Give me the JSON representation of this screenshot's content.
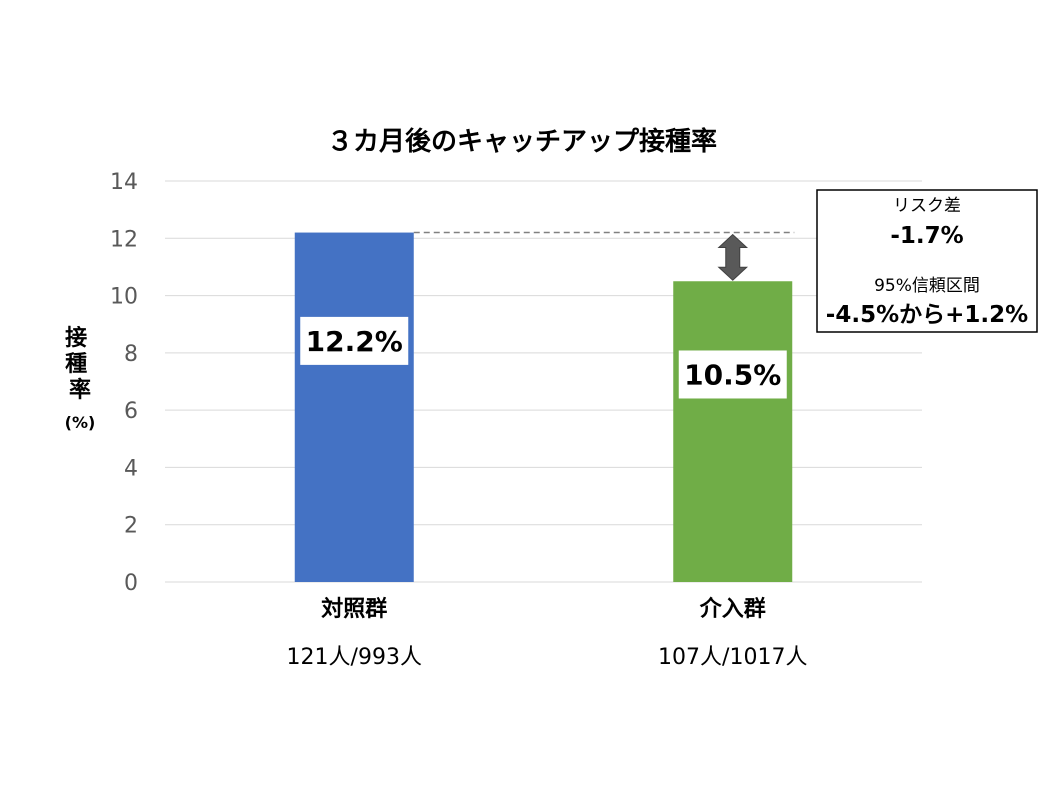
{
  "chart_data": {
    "type": "bar",
    "title": "３カ月後のキャッチアップ接種率",
    "ylabel": "接種率",
    "ylabel_unit": "(%)",
    "ylim": [
      0,
      14
    ],
    "yticks": [
      "0",
      "2",
      "4",
      "6",
      "8",
      "10",
      "12",
      "14"
    ],
    "ytick_values": [
      0,
      2,
      4,
      6,
      8,
      10,
      12,
      14
    ],
    "grid": true,
    "categories": [
      "対照群",
      "介入群"
    ],
    "counts": [
      "121人/993人",
      "107人/1017人"
    ],
    "values": [
      12.2,
      10.5
    ],
    "value_labels": [
      "12.2%",
      "10.5%"
    ],
    "colors": [
      "#4472c4",
      "#70ad47"
    ],
    "annotation": {
      "risk_diff_label": "リスク差",
      "risk_diff_value": "-1.7%",
      "ci_label": "95%信頼区間",
      "ci_value": "-4.5%から+1.2%",
      "arrow_color": "#595959"
    }
  }
}
